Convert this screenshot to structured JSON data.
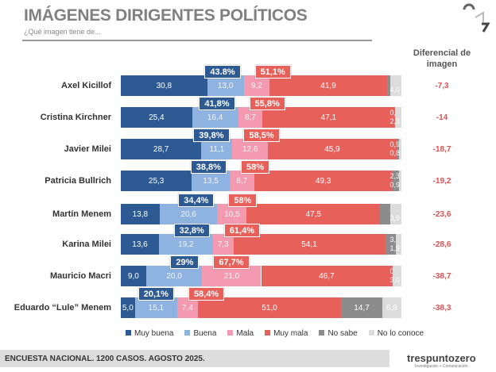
{
  "header": {
    "title": "IMÁGENES DIRIGENTES POLÍTICOS",
    "subtitle": "¿Qué imagen tiene de...",
    "diff_title": "Diferencial de imagen"
  },
  "chart_data": {
    "type": "bar",
    "stacked": true,
    "orientation": "horizontal",
    "categories": [
      "Axel Kicillof",
      "Cristina Kirchner",
      "Javier Milei",
      "Patricia Bullrich",
      "Martín Menem",
      "Karina Milei",
      "Mauricio Macri",
      "Eduardo “Lule” Menem"
    ],
    "series": [
      {
        "name": "Muy buena",
        "color": "#2e5a93",
        "values": [
          30.8,
          25.4,
          28.7,
          25.3,
          13.8,
          13.6,
          9.0,
          5.0
        ],
        "labels": [
          "30,8",
          "25,4",
          "28,7",
          "25,3",
          "13,8",
          "13,6",
          "9,0",
          "5,0"
        ]
      },
      {
        "name": "Buena",
        "color": "#8fb3e0",
        "values": [
          13.0,
          16.4,
          11.1,
          13.5,
          20.6,
          19.2,
          20.0,
          15.1
        ],
        "labels": [
          "13,0",
          "16,4",
          "11,1",
          "13,5",
          "20,6",
          "19,2",
          "20,0",
          "15,1"
        ]
      },
      {
        "name": "Mala",
        "color": "#f49ab0",
        "values": [
          9.2,
          8.7,
          12.6,
          8.7,
          10.5,
          7.3,
          21.0,
          7.4
        ],
        "labels": [
          "9,2",
          "8,7",
          "12,6",
          "8,7",
          "10,5",
          "7,3",
          "21,0",
          "7,4"
        ]
      },
      {
        "name": "Muy mala",
        "color": "#e8605a",
        "values": [
          41.9,
          47.1,
          45.9,
          49.3,
          47.5,
          54.1,
          46.7,
          51.0
        ],
        "labels": [
          "41,9",
          "47,1",
          "45,9",
          "49,3",
          "47,5",
          "54,1",
          "46,7",
          "51,0"
        ]
      },
      {
        "name": "No sabe",
        "color": "#8c8c8c",
        "values": [
          1.1,
          0.1,
          0.9,
          2.3,
          3.7,
          3.9,
          0.3,
          14.7
        ],
        "labels": [
          "1,1",
          "0,1",
          "0,9",
          "2,3",
          "3,7",
          "3,9",
          "0,3",
          "14,7"
        ]
      },
      {
        "name": "No lo conoce",
        "color": "#dcdcdc",
        "values": [
          4.0,
          2.3,
          0.8,
          0.9,
          3.9,
          1.9,
          3.0,
          6.8
        ],
        "labels": [
          "4,0",
          "2,3",
          "0,8",
          "0,9",
          "3,9",
          "1,9",
          "3,0",
          "6,8"
        ]
      }
    ],
    "positive_totals": [
      "43.8%",
      "41,8%",
      "39,8%",
      "38,8%",
      "34,4%",
      "32,8%",
      "29%",
      "20,1%"
    ],
    "negative_totals": [
      "51,1%",
      "55,8%",
      "58,5%",
      "58%",
      "58%",
      "61,4%",
      "67,7%",
      "58,4%"
    ],
    "differential": [
      "-7,3",
      "-14",
      "-18,7",
      "-19,2",
      "-23,6",
      "-28,6",
      "-38,7",
      "-38,3"
    ],
    "xlim": [
      0,
      100
    ],
    "legend": "bottom"
  },
  "footer": {
    "text": "ENCUESTA NACIONAL. 1200 CASOS. AGOSTO 2025.",
    "brand": "trespuntozero",
    "brand_sub": "Investigación + Comunicación"
  }
}
